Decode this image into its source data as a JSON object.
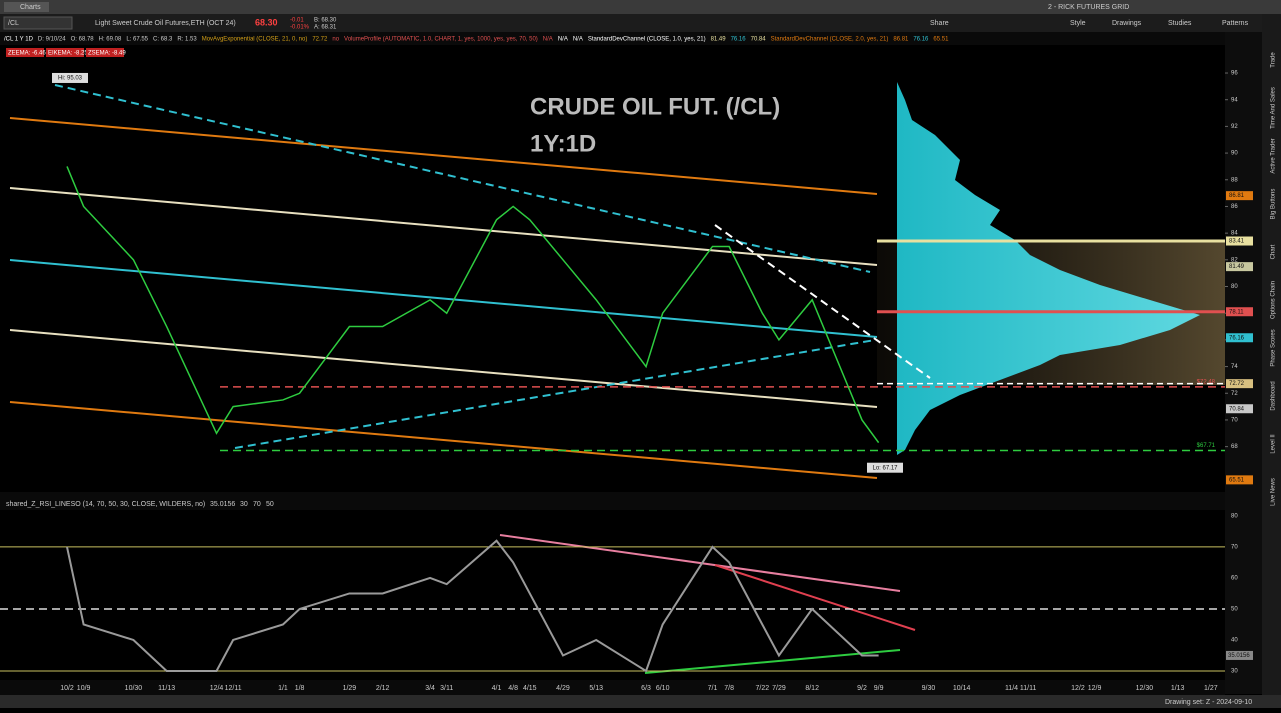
{
  "window": {
    "title": "Charts",
    "workspace": "2 - RICK FUTURES GRID"
  },
  "toolbar": {
    "symbol": "/CL",
    "description": "Light Sweet Crude Oil Futures,ETH (OCT 24)",
    "last": "68.30",
    "change": "-0.01",
    "change_pct": "-0.01%",
    "bid": "B: 68.30",
    "ask": "A: 68.31",
    "buttons": [
      "Share",
      "Style",
      "Drawings",
      "Studies",
      "Patterns"
    ]
  },
  "study_header": [
    {
      "text": "/CL 1 Y 1D",
      "color": "#ffffff"
    },
    {
      "text": "D: 9/10/24",
      "color": "#cccccc"
    },
    {
      "text": "O: 68.78",
      "color": "#cccccc"
    },
    {
      "text": "H: 69.08",
      "color": "#cccccc"
    },
    {
      "text": "L: 67.55",
      "color": "#cccccc"
    },
    {
      "text": "C: 68.3",
      "color": "#cccccc"
    },
    {
      "text": "R: 1.53",
      "color": "#cccccc"
    },
    {
      "text": "MovAvgExponential (CLOSE, 21, 0, no)",
      "color": "#d4a017"
    },
    {
      "text": "72.72",
      "color": "#d4a017"
    },
    {
      "text": "no",
      "color": "#e05050"
    },
    {
      "text": "VolumeProfile (AUTOMATIC, 1.0, CHART, 1, yes, 1000, yes, yes, 70, 50)",
      "color": "#e05050"
    },
    {
      "text": "N/A",
      "color": "#e05050"
    },
    {
      "text": "N/A",
      "color": "#ffffff"
    },
    {
      "text": "N/A",
      "color": "#ffffff"
    },
    {
      "text": "StandardDevChannel (CLOSE, 1.0, yes, 21)",
      "color": "#ffffff"
    },
    {
      "text": "81.49",
      "color": "#e8e0a0"
    },
    {
      "text": "76.16",
      "color": "#30c0d0"
    },
    {
      "text": "70.84",
      "color": "#e8e0a0"
    },
    {
      "text": "StandardDevChannel (CLOSE, 2.0, yes, 21)",
      "color": "#e07a10"
    },
    {
      "text": "86.81",
      "color": "#e07a10"
    },
    {
      "text": "76.16",
      "color": "#30c0d0"
    },
    {
      "text": "65.51",
      "color": "#e07a10"
    }
  ],
  "ema_tags": [
    "ZEEMA: -6.46",
    "EIKEMA: -8.25",
    "ZSEMA: -8.49"
  ],
  "sidebar": [
    "Trade",
    "Time And Sales",
    "Active Trader",
    "Big Buttons",
    "Chart",
    "Options Chain",
    "Phase Scores",
    "Dashboard",
    "Level II",
    "Live News"
  ],
  "status": "Drawing set: Z - 2024-09-10",
  "chart_data": {
    "type": "line",
    "title": "CRUDE OIL FUT. (/CL)",
    "subtitle": "1Y:1D",
    "categories": [
      "10/2",
      "10/9",
      "10/30",
      "11/13",
      "12/4",
      "12/11",
      "1/1",
      "1/8",
      "1/29",
      "2/12",
      "3/4",
      "3/11",
      "4/1",
      "4/8",
      "4/15",
      "4/29",
      "5/13",
      "6/3",
      "6/10",
      "7/1",
      "7/8",
      "7/22",
      "7/29",
      "8/12",
      "9/2",
      "9/9",
      "9/30",
      "10/14",
      "11/4",
      "11/11",
      "12/2",
      "12/9",
      "12/30",
      "1/13",
      "1/27"
    ],
    "series": [
      {
        "name": "/CL",
        "color": "#2ecc40",
        "values": [
          89,
          86,
          82,
          77,
          69,
          71,
          71.5,
          72,
          77,
          77,
          79,
          78,
          85,
          86,
          85,
          82,
          79,
          74,
          78,
          83,
          83,
          78,
          76,
          79,
          70,
          68.3,
          null,
          null,
          null,
          null,
          null,
          null,
          null,
          null,
          null
        ]
      }
    ],
    "ylim": [
      64.6,
      98.1
    ],
    "yticks": [
      68,
      70,
      72,
      74,
      76,
      78,
      80,
      82,
      84,
      86,
      88,
      90,
      92,
      94,
      96
    ],
    "extremes": [
      {
        "value": 95.03,
        "label": "Hi: 95.03"
      },
      {
        "value": 67.17,
        "label": "Lo: 67.17"
      }
    ],
    "levels": [
      {
        "value": 72.48,
        "label": "$72.48",
        "color": "#e05050"
      },
      {
        "value": 67.71,
        "label": "$67.71",
        "color": "#2ecc40"
      }
    ],
    "price_tags": [
      {
        "value": 86.81,
        "color": "#e07a10"
      },
      {
        "value": 83.41,
        "color": "#e8e0a0"
      },
      {
        "value": 81.49,
        "color": "#c8c8a0"
      },
      {
        "value": 78.11,
        "color": "#e05050"
      },
      {
        "value": 76.16,
        "color": "#30c0d0"
      },
      {
        "value": 72.72,
        "color": "#d8c080"
      },
      {
        "value": 70.84,
        "color": "#c8c8c8"
      },
      {
        "value": 65.51,
        "color": "#e07a10"
      }
    ],
    "rsi": {
      "title": "shared_Z_RSI_LINESO (14, 70, 50, 30, CLOSE, WILDERS, no)",
      "last": 35.0156,
      "params": [
        "30",
        "70",
        "50"
      ],
      "color": "#9a9a9a",
      "values": [
        70,
        45,
        40,
        30,
        30,
        40,
        45,
        50,
        55,
        55,
        60,
        58,
        72,
        65,
        55,
        35,
        40,
        30,
        45,
        70,
        65,
        45,
        35,
        50,
        35,
        35.0156,
        null,
        null,
        null,
        null,
        null,
        null,
        null,
        null,
        null
      ],
      "ylim": [
        27.1,
        81.9
      ],
      "yticks": [
        30,
        40,
        50,
        60,
        70,
        80
      ]
    }
  }
}
